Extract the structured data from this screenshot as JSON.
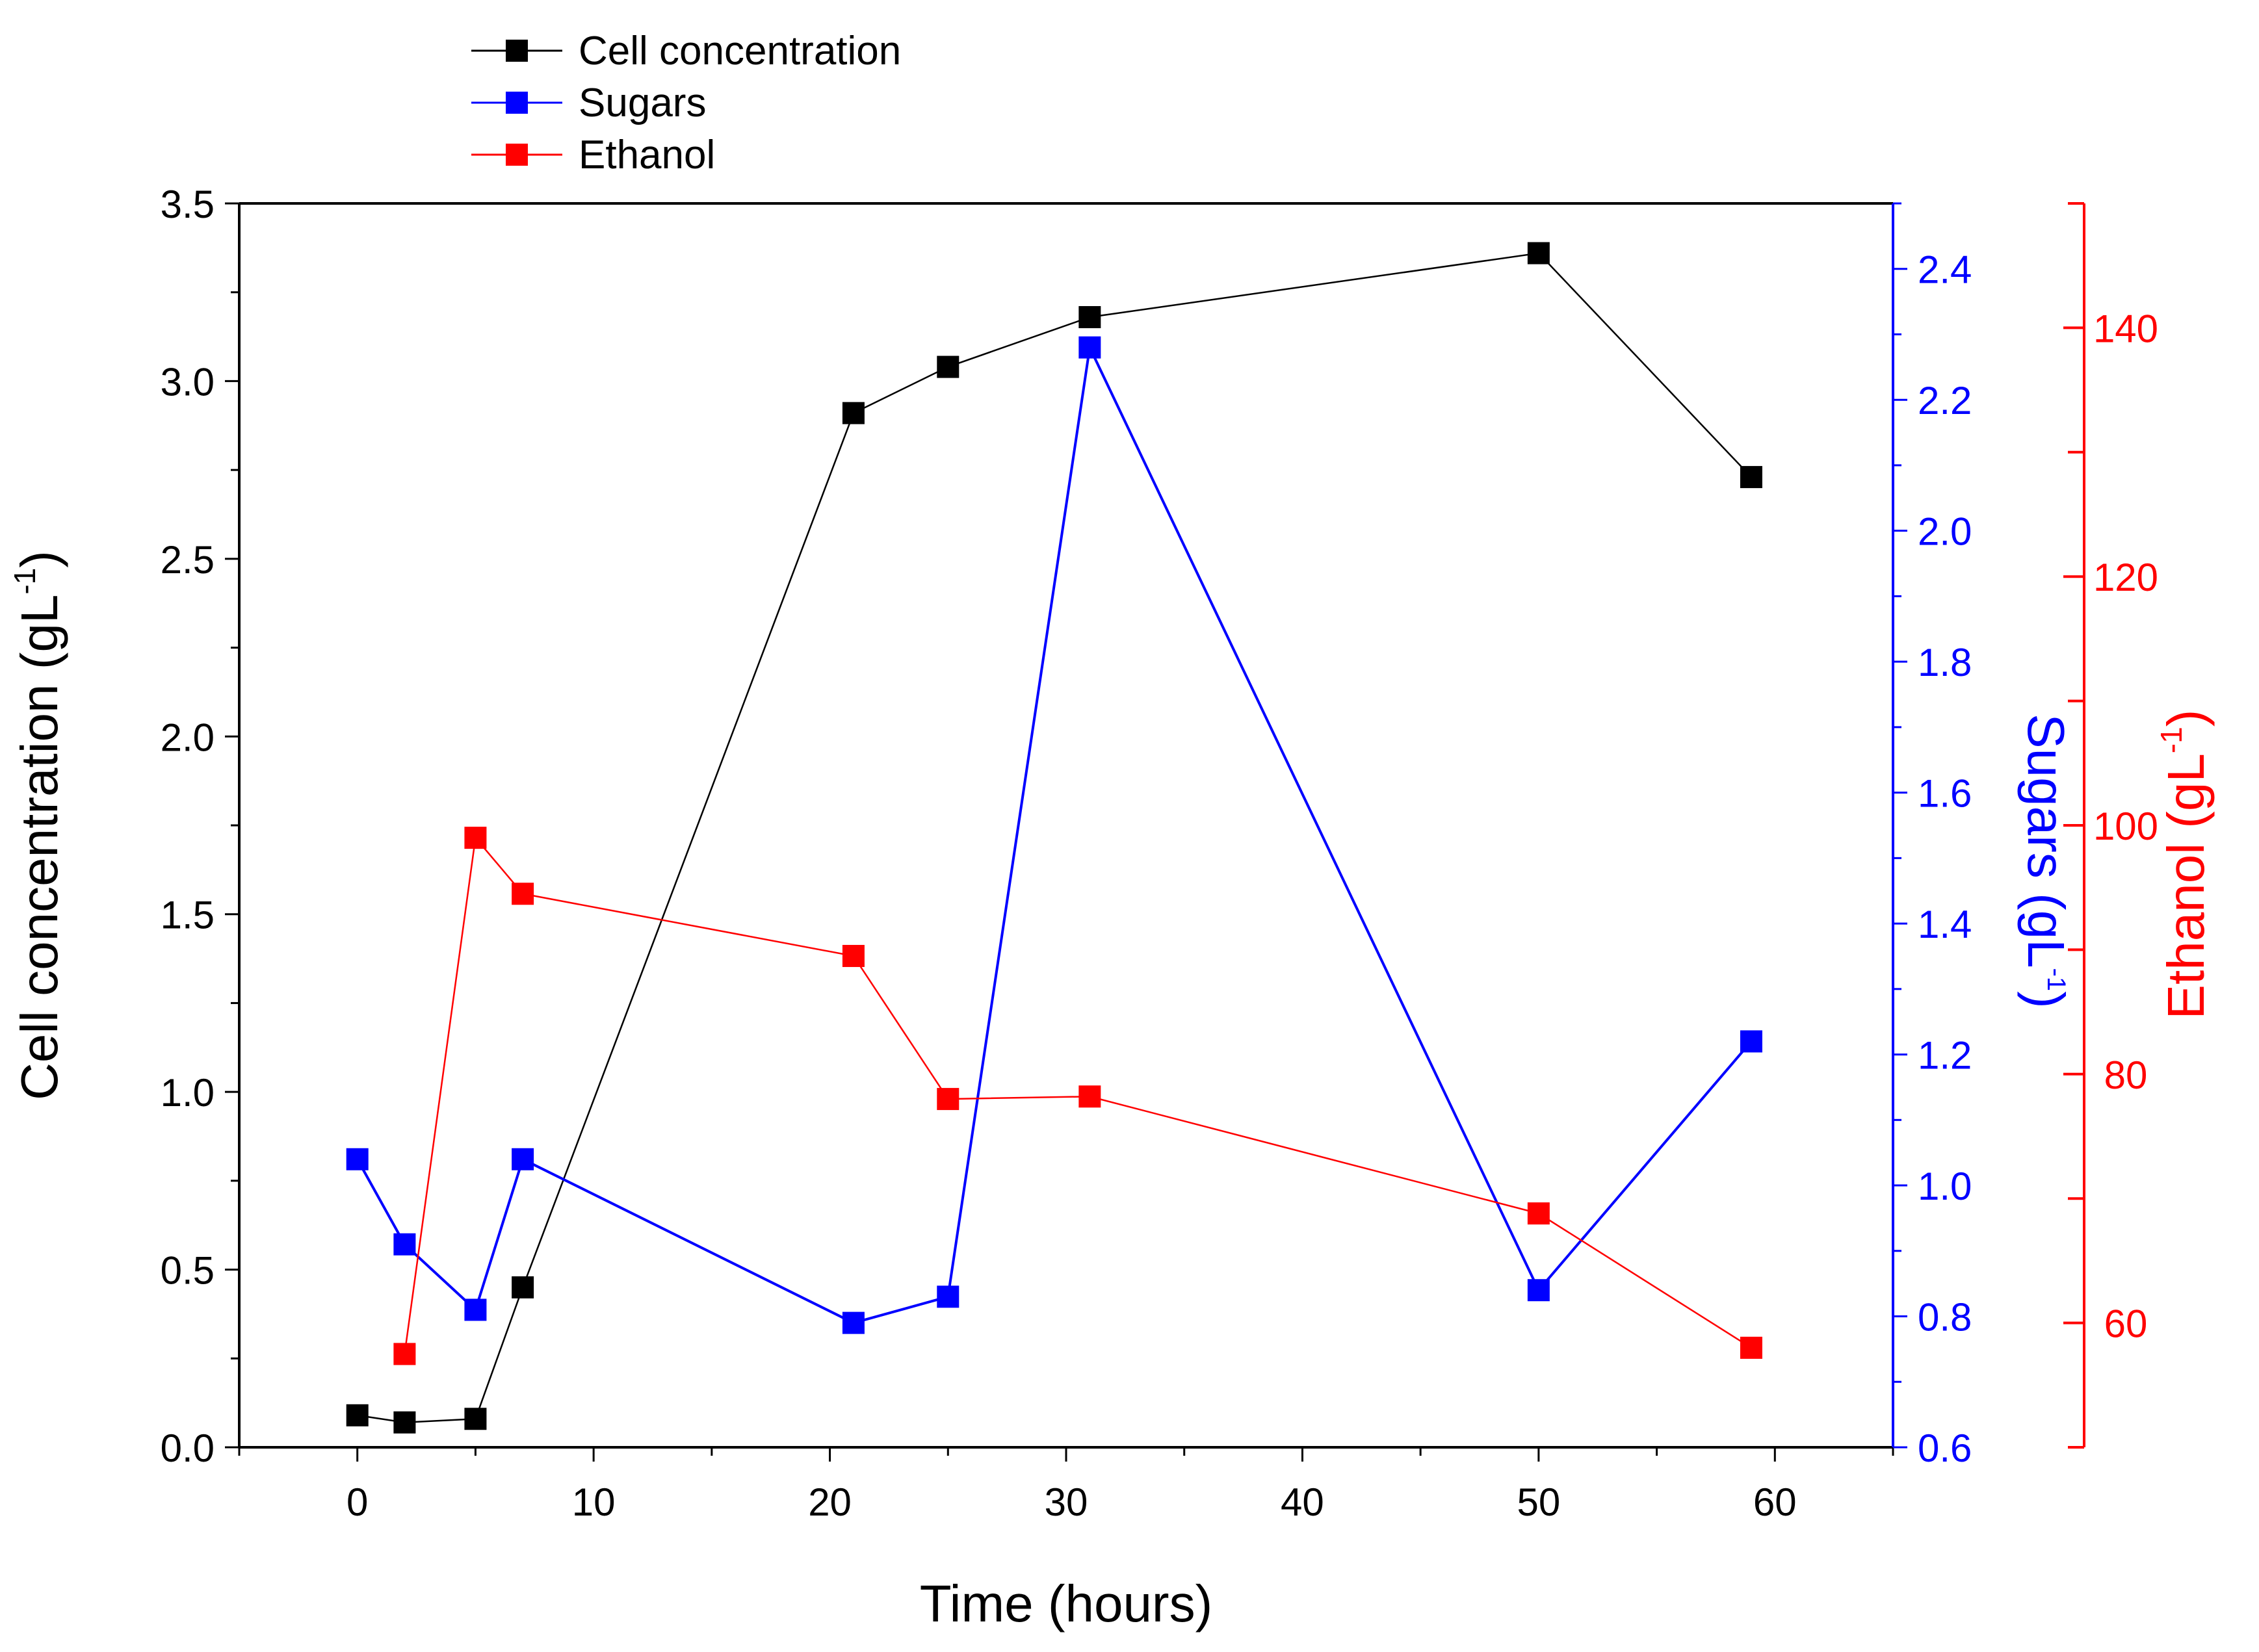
{
  "chart_data": {
    "type": "line",
    "x_axis": {
      "label": "Time (hours)",
      "range": [
        -5,
        65
      ],
      "ticks": [
        0,
        10,
        20,
        30,
        40,
        50,
        60
      ],
      "tick_labels": [
        "0",
        "10",
        "20",
        "30",
        "40",
        "50",
        "60"
      ]
    },
    "y_axes": [
      {
        "id": "cell",
        "label": "Cell concentration (gL",
        "label_sup": "-1",
        "label_end": ")",
        "color": "#000000",
        "range": [
          0,
          3.5
        ],
        "ticks": [
          0.0,
          0.5,
          1.0,
          1.5,
          2.0,
          2.5,
          3.0,
          3.5
        ],
        "tick_labels": [
          "0.0",
          "0.5",
          "1.0",
          "1.5",
          "2.0",
          "2.5",
          "3.0",
          "3.5"
        ]
      },
      {
        "id": "sugars",
        "label": "Sugars (gL",
        "label_sup": "-1",
        "label_end": ")",
        "color": "#0000ff",
        "range": [
          0.6,
          2.5
        ],
        "ticks": [
          0.6,
          0.8,
          1.0,
          1.2,
          1.4,
          1.6,
          1.8,
          2.0,
          2.2,
          2.4
        ],
        "tick_labels": [
          "0.6",
          "0.8",
          "1.0",
          "1.2",
          "1.4",
          "1.6",
          "1.8",
          "2.0",
          "2.2",
          "2.4"
        ]
      },
      {
        "id": "ethanol",
        "label": "Ethanol (gL",
        "label_sup": "-1",
        "label_end": ")",
        "color": "#ff0000",
        "range": [
          50,
          150
        ],
        "ticks": [
          60,
          80,
          100,
          120,
          140
        ],
        "tick_labels": [
          "60",
          "80",
          "100",
          "120",
          "140"
        ],
        "minor_ticks": [
          50,
          70,
          90,
          110,
          130,
          150
        ]
      }
    ],
    "series": [
      {
        "name": "Cell concentration",
        "axis": "cell",
        "color": "#000000",
        "marker": "square",
        "x": [
          0,
          2,
          5,
          7,
          21,
          25,
          31,
          50,
          59
        ],
        "y": [
          0.09,
          0.07,
          0.08,
          0.45,
          2.91,
          3.04,
          3.18,
          3.36,
          2.73
        ]
      },
      {
        "name": "Sugars",
        "axis": "sugars",
        "color": "#0000ff",
        "marker": "square",
        "x": [
          0,
          2,
          5,
          7,
          21,
          25,
          31,
          50,
          59
        ],
        "y": [
          1.04,
          0.91,
          0.81,
          1.04,
          0.79,
          0.83,
          2.28,
          0.84,
          1.22
        ]
      },
      {
        "name": "Ethanol",
        "axis": "ethanol",
        "color": "#ff0000",
        "marker": "square",
        "x": [
          2,
          5,
          7,
          21,
          25,
          31,
          50,
          59
        ],
        "y": [
          57.5,
          99.0,
          94.5,
          89.5,
          78.0,
          78.2,
          68.8,
          58.0
        ]
      }
    ],
    "legend": {
      "position": "top-left",
      "entries": [
        "Cell concentration",
        "Sugars",
        "Ethanol"
      ]
    },
    "grid": false
  }
}
